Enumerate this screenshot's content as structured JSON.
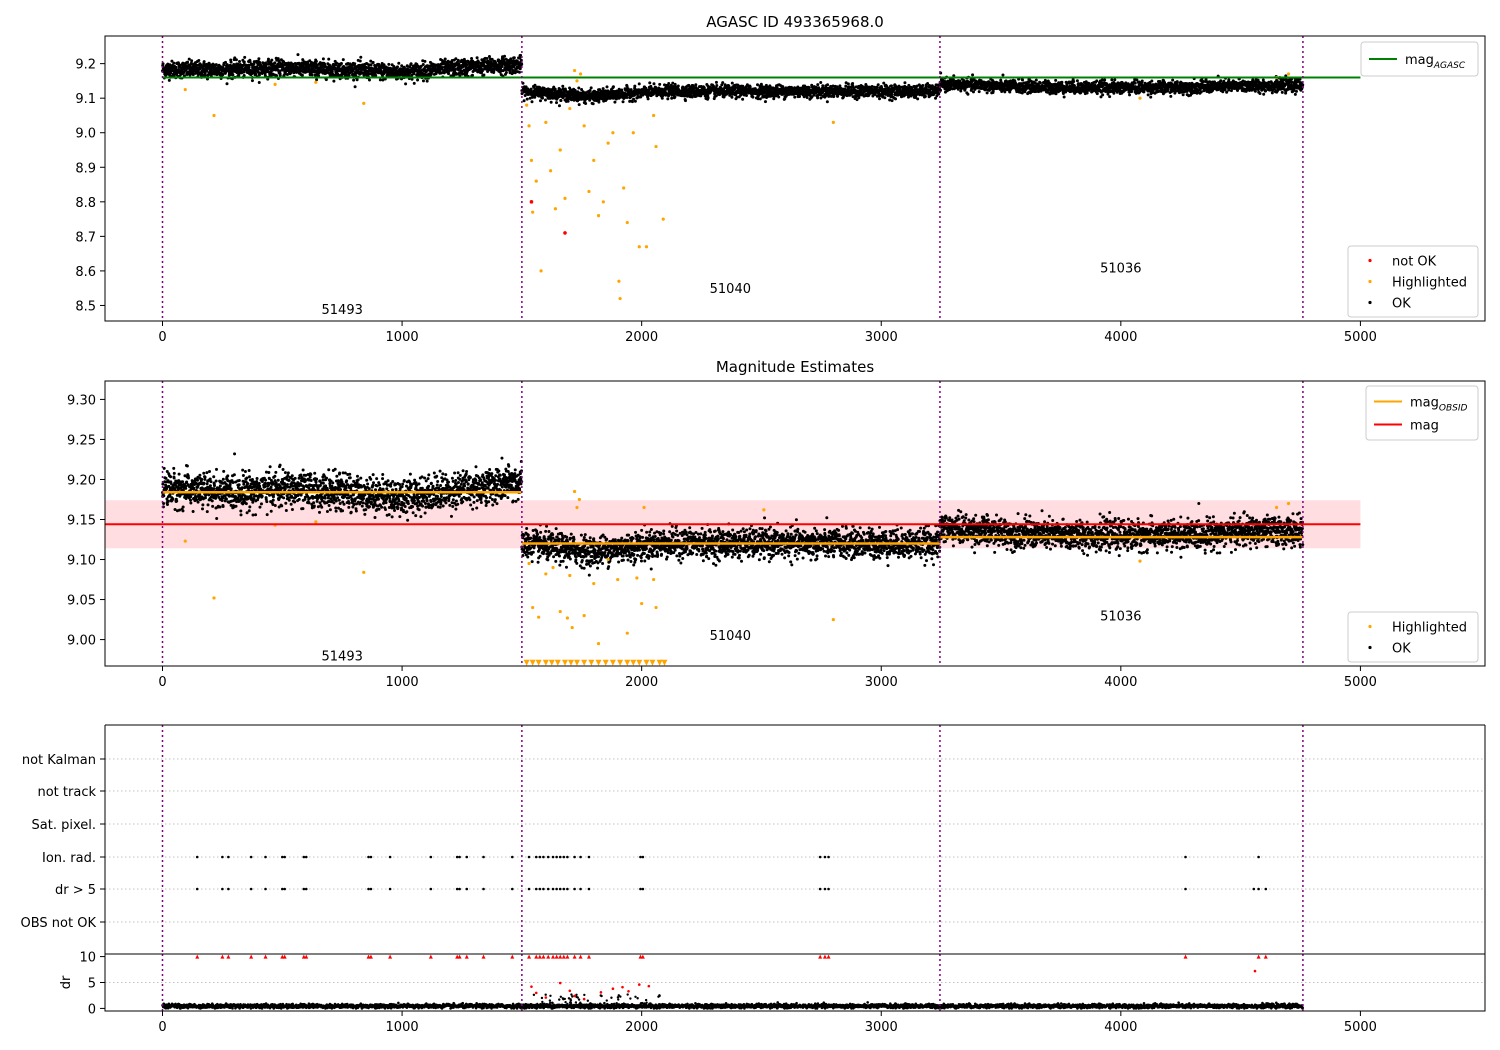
{
  "figure": {
    "background": "#ffffff"
  },
  "colors": {
    "ok": "#000000",
    "highlighted": "#ffa500",
    "not_ok": "#ff0000",
    "mag_agasc": "#008000",
    "mag_obsid": "#ffa500",
    "mag": "#ff0000",
    "mag_band": "#ffdde1",
    "obs_boundary": "#800080",
    "grid": "#b0b0b0"
  },
  "chart_data": [
    {
      "type": "scatter",
      "title": "AGASC ID 493365968.0",
      "xlabel": "",
      "ylabel": "",
      "xlim": [
        -240,
        5520
      ],
      "ylim": [
        8.455,
        9.28
      ],
      "xticks": [
        0,
        1000,
        2000,
        3000,
        4000,
        5000
      ],
      "yticks": [
        8.5,
        8.6,
        8.7,
        8.8,
        8.9,
        9.0,
        9.1,
        9.2
      ],
      "ytick_labels": [
        "8.5",
        "8.6",
        "8.7",
        "8.8",
        "8.9",
        "9.0",
        "9.1",
        "9.2"
      ],
      "legends": [
        {
          "position": "top-right",
          "entries": [
            {
              "label": "mag",
              "sub": "AGASC",
              "kind": "line",
              "color_key": "mag_agasc"
            }
          ]
        },
        {
          "position": "bottom-right",
          "entries": [
            {
              "label": "not OK",
              "kind": "dot",
              "color_key": "not_ok"
            },
            {
              "label": "Highlighted",
              "kind": "dot",
              "color_key": "highlighted"
            },
            {
              "label": "OK",
              "kind": "dot",
              "color_key": "ok"
            }
          ]
        }
      ],
      "obs_boundaries": [
        0,
        1500,
        3245,
        4760
      ],
      "obsid_labels": [
        {
          "text": "51493",
          "x": 750,
          "y": 8.49
        },
        {
          "text": "51040",
          "x": 2370,
          "y": 8.55
        },
        {
          "text": "51036",
          "x": 4000,
          "y": 8.61
        }
      ],
      "hlines": [
        {
          "name": "mag AGASC",
          "y": 9.16,
          "x": [
            0,
            5000
          ],
          "color_key": "mag_agasc"
        }
      ],
      "ok_segments": [
        {
          "x": [
            0,
            1500
          ],
          "mean": 9.183,
          "spread": 0.012,
          "trend": [
            0,
            0,
            0.005,
            0.0,
            -0.008,
            0.006,
            0.015
          ]
        },
        {
          "x": [
            1500,
            3245
          ],
          "mean": 9.12,
          "spread": 0.009,
          "trend": [
            0,
            -0.015,
            0,
            0,
            0,
            0,
            0
          ]
        },
        {
          "x": [
            3245,
            4760
          ],
          "mean": 9.131,
          "spread": 0.009,
          "trend": [
            0.01,
            0.004,
            0,
            0,
            0,
            0.005,
            0.005
          ]
        }
      ],
      "highlighted_points": [
        {
          "x": 95,
          "y": 9.125
        },
        {
          "x": 215,
          "y": 9.05
        },
        {
          "x": 470,
          "y": 9.14
        },
        {
          "x": 640,
          "y": 9.146
        },
        {
          "x": 840,
          "y": 9.085
        },
        {
          "x": 1520,
          "y": 9.08
        },
        {
          "x": 1530,
          "y": 9.02
        },
        {
          "x": 1540,
          "y": 8.92
        },
        {
          "x": 1545,
          "y": 8.77
        },
        {
          "x": 1560,
          "y": 8.86
        },
        {
          "x": 1580,
          "y": 8.6
        },
        {
          "x": 1600,
          "y": 9.03
        },
        {
          "x": 1620,
          "y": 8.89
        },
        {
          "x": 1640,
          "y": 8.78
        },
        {
          "x": 1660,
          "y": 8.95
        },
        {
          "x": 1680,
          "y": 8.81
        },
        {
          "x": 1700,
          "y": 9.07
        },
        {
          "x": 1720,
          "y": 9.18
        },
        {
          "x": 1730,
          "y": 9.15
        },
        {
          "x": 1745,
          "y": 9.17
        },
        {
          "x": 1760,
          "y": 9.02
        },
        {
          "x": 1780,
          "y": 8.83
        },
        {
          "x": 1800,
          "y": 8.92
        },
        {
          "x": 1820,
          "y": 8.76
        },
        {
          "x": 1840,
          "y": 8.8
        },
        {
          "x": 1860,
          "y": 8.97
        },
        {
          "x": 1880,
          "y": 9.0
        },
        {
          "x": 1905,
          "y": 8.57
        },
        {
          "x": 1910,
          "y": 8.52
        },
        {
          "x": 1925,
          "y": 8.84
        },
        {
          "x": 1940,
          "y": 8.74
        },
        {
          "x": 1965,
          "y": 9.0
        },
        {
          "x": 1990,
          "y": 8.67
        },
        {
          "x": 2020,
          "y": 8.67
        },
        {
          "x": 2060,
          "y": 8.96
        },
        {
          "x": 2090,
          "y": 8.75
        },
        {
          "x": 2050,
          "y": 9.05
        },
        {
          "x": 2800,
          "y": 9.03
        },
        {
          "x": 4080,
          "y": 9.1
        },
        {
          "x": 4650,
          "y": 9.16
        },
        {
          "x": 4700,
          "y": 9.17
        }
      ],
      "not_ok_points": [
        {
          "x": 1540,
          "y": 8.8
        },
        {
          "x": 1680,
          "y": 8.71
        }
      ]
    },
    {
      "type": "scatter",
      "title": "Magnitude Estimates",
      "xlabel": "",
      "ylabel": "",
      "xlim": [
        -240,
        5520
      ],
      "ylim": [
        8.967,
        9.323
      ],
      "xticks": [
        0,
        1000,
        2000,
        3000,
        4000,
        5000
      ],
      "yticks": [
        9.0,
        9.05,
        9.1,
        9.15,
        9.2,
        9.25,
        9.3
      ],
      "ytick_labels": [
        "9.00",
        "9.05",
        "9.10",
        "9.15",
        "9.20",
        "9.25",
        "9.30"
      ],
      "legends": [
        {
          "position": "top-right",
          "entries": [
            {
              "label": "mag",
              "sub": "OBSID",
              "kind": "line",
              "color_key": "mag_obsid"
            },
            {
              "label": "mag",
              "kind": "line",
              "color_key": "mag"
            }
          ]
        },
        {
          "position": "bottom-right",
          "entries": [
            {
              "label": "Highlighted",
              "kind": "dot",
              "color_key": "highlighted"
            },
            {
              "label": "OK",
              "kind": "dot",
              "color_key": "ok"
            }
          ]
        }
      ],
      "obs_boundaries": [
        0,
        1500,
        3245,
        4760
      ],
      "obsid_labels": [
        {
          "text": "51493",
          "x": 750,
          "y": 8.98
        },
        {
          "text": "51040",
          "x": 2370,
          "y": 9.006
        },
        {
          "text": "51036",
          "x": 4000,
          "y": 9.03
        }
      ],
      "mag": {
        "y": 9.144,
        "band": [
          9.114,
          9.174
        ],
        "x": [
          -240,
          5000
        ]
      },
      "mag_obsid": [
        {
          "x": [
            0,
            1500
          ],
          "y": 9.184
        },
        {
          "x": [
            1500,
            3245
          ],
          "y": 9.12
        },
        {
          "x": [
            3245,
            4760
          ],
          "y": 9.128
        }
      ],
      "ok_segments": [
        {
          "x": [
            0,
            1500
          ],
          "mean": 9.184,
          "spread": 0.011,
          "trend": [
            0.005,
            0,
            0.004,
            0.0,
            -0.006,
            0.004,
            0.012
          ]
        },
        {
          "x": [
            1500,
            3245
          ],
          "mean": 9.12,
          "spread": 0.009,
          "trend": [
            0,
            -0.01,
            0,
            0,
            0,
            0,
            0
          ]
        },
        {
          "x": [
            3245,
            4760
          ],
          "mean": 9.13,
          "spread": 0.009,
          "trend": [
            0.01,
            0.004,
            0,
            0,
            0,
            0.005,
            0.005
          ]
        }
      ],
      "highlighted_points": [
        {
          "x": 95,
          "y": 9.123
        },
        {
          "x": 215,
          "y": 9.052
        },
        {
          "x": 470,
          "y": 9.143
        },
        {
          "x": 640,
          "y": 9.147
        },
        {
          "x": 840,
          "y": 9.084
        },
        {
          "x": 1530,
          "y": 9.095
        },
        {
          "x": 1545,
          "y": 9.04
        },
        {
          "x": 1570,
          "y": 9.028
        },
        {
          "x": 1600,
          "y": 9.082
        },
        {
          "x": 1630,
          "y": 9.09
        },
        {
          "x": 1660,
          "y": 9.035
        },
        {
          "x": 1690,
          "y": 9.027
        },
        {
          "x": 1700,
          "y": 9.08
        },
        {
          "x": 1710,
          "y": 9.015
        },
        {
          "x": 1720,
          "y": 9.185
        },
        {
          "x": 1730,
          "y": 9.165
        },
        {
          "x": 1740,
          "y": 9.175
        },
        {
          "x": 1760,
          "y": 9.03
        },
        {
          "x": 1800,
          "y": 9.07
        },
        {
          "x": 1820,
          "y": 8.995
        },
        {
          "x": 1860,
          "y": 9.1
        },
        {
          "x": 1900,
          "y": 9.075
        },
        {
          "x": 1940,
          "y": 9.008
        },
        {
          "x": 1980,
          "y": 9.077
        },
        {
          "x": 2000,
          "y": 9.045
        },
        {
          "x": 2010,
          "y": 9.165
        },
        {
          "x": 2050,
          "y": 9.075
        },
        {
          "x": 2060,
          "y": 9.04
        },
        {
          "x": 2510,
          "y": 9.162
        },
        {
          "x": 2800,
          "y": 9.025
        },
        {
          "x": 4080,
          "y": 9.098
        },
        {
          "x": 4650,
          "y": 9.165
        },
        {
          "x": 4700,
          "y": 9.17
        }
      ],
      "clipped_markers": {
        "y": 8.971,
        "xs": [
          1520,
          1545,
          1570,
          1600,
          1625,
          1650,
          1680,
          1705,
          1730,
          1760,
          1790,
          1820,
          1850,
          1880,
          1910,
          1940,
          1965,
          1990,
          2020,
          2045,
          2075,
          2095
        ]
      }
    },
    {
      "type": "scatter",
      "title": "",
      "xlabel": "",
      "ylabel": "",
      "xlim": [
        -240,
        5520
      ],
      "flags": [
        "not Kalman",
        "not track",
        "Sat. pixel.",
        "Ion. rad.",
        "dr > 5",
        "OBS not OK"
      ],
      "flag_points": {
        "Ion. rad.": [
          145,
          250,
          275,
          370,
          430,
          500,
          510,
          590,
          600,
          860,
          870,
          950,
          1120,
          1230,
          1240,
          1270,
          1340,
          1460,
          1530,
          1560,
          1575,
          1590,
          1610,
          1630,
          1645,
          1660,
          1675,
          1690,
          1720,
          1745,
          1780,
          1995,
          2005,
          2745,
          2765,
          2780,
          4270,
          4575
        ],
        "dr > 5": [
          145,
          250,
          275,
          370,
          430,
          500,
          510,
          590,
          600,
          860,
          870,
          950,
          1120,
          1230,
          1240,
          1270,
          1340,
          1460,
          1530,
          1560,
          1575,
          1590,
          1610,
          1630,
          1645,
          1660,
          1675,
          1690,
          1720,
          1745,
          1780,
          1995,
          2005,
          2745,
          2765,
          2780,
          4270,
          4555,
          4575,
          4605
        ]
      },
      "obs_boundaries": [
        0,
        1500,
        3245,
        4760
      ]
    },
    {
      "type": "scatter",
      "title": "",
      "xlabel": "",
      "ylabel": "dr",
      "xlim": [
        -240,
        5520
      ],
      "ylim": [
        -0.5,
        10.5
      ],
      "xticks": [
        0,
        1000,
        2000,
        3000,
        4000,
        5000
      ],
      "yticks": [
        0,
        5,
        10
      ],
      "ytick_labels": [
        "0",
        "5",
        "10"
      ],
      "obs_boundaries": [
        0,
        1500,
        3245,
        4760
      ],
      "dr_ok": {
        "x": [
          0,
          4760
        ],
        "mean": 0.45,
        "spread": 0.2
      },
      "dr_clipped_x": [
        145,
        250,
        275,
        370,
        430,
        500,
        510,
        590,
        600,
        860,
        870,
        950,
        1120,
        1230,
        1240,
        1270,
        1340,
        1460,
        1530,
        1560,
        1575,
        1590,
        1610,
        1630,
        1645,
        1660,
        1675,
        1690,
        1720,
        1745,
        1780,
        1995,
        2005,
        2745,
        2765,
        2780,
        4270,
        4575,
        4605
      ],
      "dr_high_points": [
        {
          "x": 1540,
          "y": 4.2
        },
        {
          "x": 1560,
          "y": 3.0
        },
        {
          "x": 1600,
          "y": 2.1
        },
        {
          "x": 1660,
          "y": 4.9
        },
        {
          "x": 1700,
          "y": 3.4
        },
        {
          "x": 1720,
          "y": 2.4
        },
        {
          "x": 1760,
          "y": 1.8
        },
        {
          "x": 1830,
          "y": 3.1
        },
        {
          "x": 1880,
          "y": 3.8
        },
        {
          "x": 1920,
          "y": 4.1
        },
        {
          "x": 1945,
          "y": 3.3
        },
        {
          "x": 1990,
          "y": 4.6
        },
        {
          "x": 2030,
          "y": 4.3
        },
        {
          "x": 4560,
          "y": 7.2
        }
      ]
    }
  ]
}
